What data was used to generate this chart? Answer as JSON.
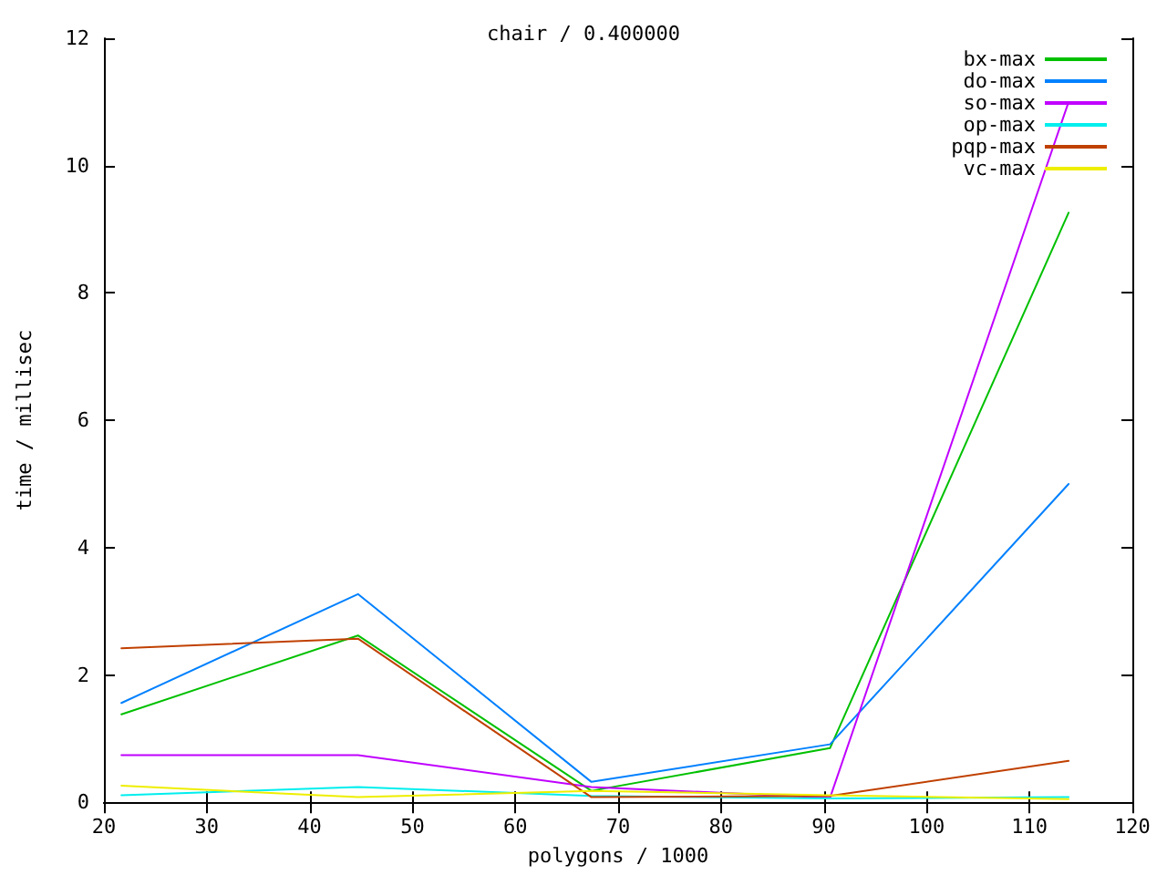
{
  "chart_data": {
    "type": "line",
    "title": "chair / 0.400000",
    "xlabel": "polygons / 1000",
    "ylabel": "time / millisec",
    "x": [
      21.7,
      44.7,
      67.4,
      90.6,
      113.8
    ],
    "series": [
      {
        "name": "bx-max",
        "color": "#00c000",
        "values": [
          1.38,
          2.62,
          0.18,
          0.85,
          9.26
        ]
      },
      {
        "name": "do-max",
        "color": "#0080ff",
        "values": [
          1.56,
          3.27,
          0.32,
          0.91,
          5.0
        ]
      },
      {
        "name": "so-max",
        "color": "#c000ff",
        "values": [
          0.74,
          0.74,
          0.24,
          0.07,
          11.0
        ]
      },
      {
        "name": "op-max",
        "color": "#00eeee",
        "values": [
          0.11,
          0.24,
          0.1,
          0.06,
          0.08
        ]
      },
      {
        "name": "pqp-max",
        "color": "#c04000",
        "values": [
          2.42,
          2.57,
          0.08,
          0.1,
          0.65
        ]
      },
      {
        "name": "vc-max",
        "color": "#eeee00",
        "values": [
          0.26,
          0.08,
          0.18,
          0.11,
          0.05
        ]
      }
    ],
    "xlim": [
      20,
      120
    ],
    "xticks": [
      20,
      30,
      40,
      50,
      60,
      70,
      80,
      90,
      100,
      110,
      120
    ],
    "ylim": [
      0,
      12
    ],
    "yticks": [
      0,
      2,
      4,
      6,
      8,
      10,
      12
    ],
    "grid": false,
    "legend": "top right"
  }
}
